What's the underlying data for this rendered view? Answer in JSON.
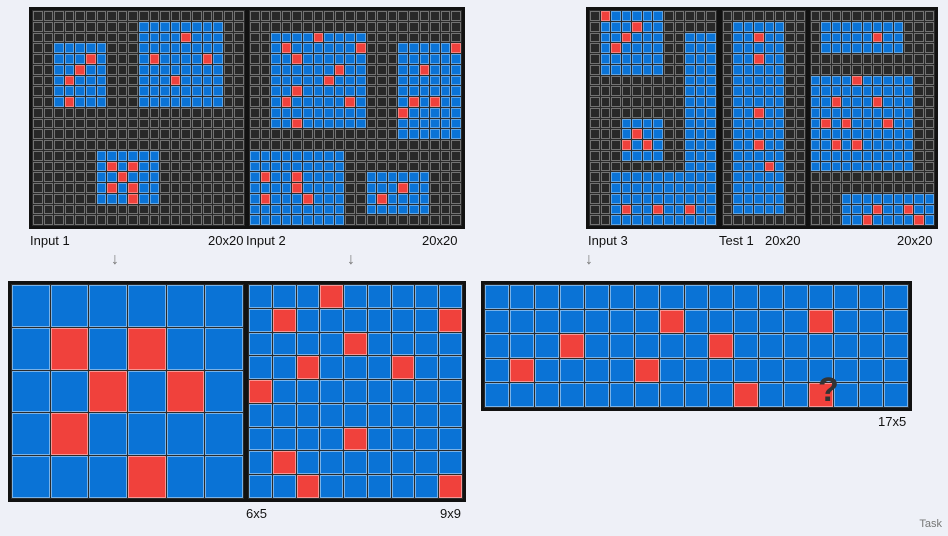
{
  "panels": [
    {
      "key": "input1",
      "label": "Input 1",
      "size": "20x20"
    },
    {
      "key": "input2",
      "label": "Input 2",
      "size": "20x20"
    },
    {
      "key": "input3",
      "label": "Input 3",
      "size": ""
    },
    {
      "key": "test1",
      "label": "Test 1",
      "size": "20x20"
    },
    {
      "key": "extra",
      "label": "",
      "size": "20x20"
    }
  ],
  "outputs": [
    {
      "key": "out1",
      "size": "6x5"
    },
    {
      "key": "out2",
      "size": "9x9"
    },
    {
      "key": "out3",
      "size": "17x5"
    }
  ],
  "question_mark": "?",
  "arrow_glyph": "↓",
  "task_label": "Task",
  "colors": {
    "background": "#282828",
    "blue": "#0a73d6",
    "red": "#f0413c"
  }
}
